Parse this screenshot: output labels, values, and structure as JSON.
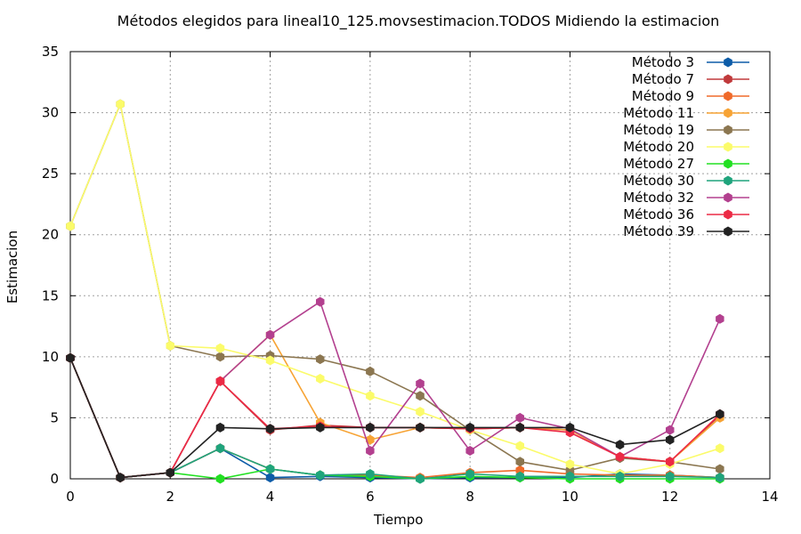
{
  "chart_data": {
    "type": "line",
    "title": "Métodos elegidos para lineal10_125.movsestimacion.TODOS Midiendo la estimacion",
    "xlabel": "Tiempo",
    "ylabel": "Estimacion",
    "xlim": [
      0,
      14
    ],
    "ylim": [
      0,
      35
    ],
    "xticks": [
      "0",
      "2",
      "4",
      "6",
      "8",
      "10",
      "12",
      "14"
    ],
    "yticks": [
      "0",
      "5",
      "10",
      "15",
      "20",
      "25",
      "30",
      "35"
    ],
    "grid": true,
    "legend_position": "top-right",
    "series": [
      {
        "name": "Método 3",
        "color": "#0d5ca8",
        "x": [
          0,
          1,
          2,
          3,
          4,
          5,
          6,
          7,
          8,
          9,
          10,
          11,
          12,
          13
        ],
        "y": [
          9.9,
          0.1,
          0.5,
          2.5,
          0.1,
          0.2,
          0.1,
          0.0,
          0.1,
          0.1,
          0.1,
          0.4,
          0.3,
          0.1
        ]
      },
      {
        "name": "Método 7",
        "color": "#c0393b",
        "x": [
          0,
          1,
          2,
          3,
          4,
          5,
          6,
          7,
          8,
          9,
          10,
          11,
          12,
          13
        ],
        "y": [
          9.9,
          0.1,
          0.5,
          8.0,
          4.0,
          4.4,
          4.2,
          4.2,
          4.1,
          4.2,
          4.0,
          1.8,
          1.4,
          5.2
        ]
      },
      {
        "name": "Método 9",
        "color": "#f06a2a",
        "x": [
          0,
          1,
          2,
          3,
          4,
          5,
          6,
          7,
          8,
          9,
          10,
          11,
          12,
          13
        ],
        "y": [
          9.9,
          0.1,
          0.5,
          2.5,
          0.8,
          0.3,
          0.3,
          0.1,
          0.5,
          0.7,
          0.4,
          0.3,
          0.3,
          0.1
        ]
      },
      {
        "name": "Método 11",
        "color": "#f7a334",
        "x": [
          0,
          1,
          2,
          3,
          4,
          5,
          6,
          7,
          8,
          9,
          10,
          11,
          12,
          13
        ],
        "y": [
          9.9,
          0.1,
          0.5,
          8.0,
          11.8,
          4.6,
          3.2,
          4.2,
          4.1,
          4.2,
          4.0,
          1.8,
          1.4,
          5.0
        ]
      },
      {
        "name": "Método 19",
        "color": "#8b7650",
        "x": [
          0,
          1,
          2,
          3,
          4,
          5,
          6,
          7,
          8,
          9,
          10,
          11,
          12,
          13
        ],
        "y": [
          20.7,
          30.7,
          10.9,
          10.0,
          10.1,
          9.8,
          8.8,
          6.8,
          4.0,
          1.4,
          0.7,
          1.7,
          1.4,
          0.8
        ]
      },
      {
        "name": "Método 20",
        "color": "#fbfb6a",
        "x": [
          0,
          1,
          2,
          3,
          4,
          5,
          6,
          7,
          8,
          9,
          10,
          11,
          12,
          13
        ],
        "y": [
          20.7,
          30.7,
          10.9,
          10.7,
          9.7,
          8.2,
          6.8,
          5.5,
          4.0,
          2.7,
          1.2,
          0.4,
          1.2,
          2.5
        ]
      },
      {
        "name": "Método 27",
        "color": "#22e022",
        "x": [
          0,
          1,
          2,
          3,
          4,
          5,
          6,
          7,
          8,
          9,
          10,
          11,
          12,
          13
        ],
        "y": [
          9.9,
          0.1,
          0.5,
          0.0,
          0.8,
          0.3,
          0.2,
          0.0,
          0.2,
          0.1,
          0.0,
          0.0,
          0.0,
          0.0
        ]
      },
      {
        "name": "Método 30",
        "color": "#1fa47c",
        "x": [
          0,
          1,
          2,
          3,
          4,
          5,
          6,
          7,
          8,
          9,
          10,
          11,
          12,
          13
        ],
        "y": [
          9.9,
          0.1,
          0.5,
          2.5,
          0.8,
          0.3,
          0.4,
          0.0,
          0.4,
          0.2,
          0.2,
          0.2,
          0.2,
          0.1
        ]
      },
      {
        "name": "Método 32",
        "color": "#b3408f",
        "x": [
          0,
          1,
          2,
          3,
          4,
          5,
          6,
          7,
          8,
          9,
          10,
          11,
          12,
          13
        ],
        "y": [
          9.9,
          0.1,
          0.5,
          8.0,
          11.8,
          14.5,
          2.3,
          7.8,
          2.3,
          5.0,
          4.1,
          1.8,
          4.0,
          13.1
        ]
      },
      {
        "name": "Método 36",
        "color": "#ec2a45",
        "x": [
          0,
          1,
          2,
          3,
          4,
          5,
          6,
          7,
          8,
          9,
          10,
          11,
          12,
          13
        ],
        "y": [
          9.9,
          0.1,
          0.5,
          8.0,
          4.1,
          4.3,
          4.2,
          4.2,
          4.1,
          4.2,
          3.8,
          1.8,
          1.4,
          5.3
        ]
      },
      {
        "name": "Método 39",
        "color": "#222222",
        "x": [
          0,
          1,
          2,
          3,
          4,
          5,
          6,
          7,
          8,
          9,
          10,
          11,
          12,
          13
        ],
        "y": [
          9.9,
          0.1,
          0.5,
          4.2,
          4.1,
          4.2,
          4.2,
          4.2,
          4.2,
          4.2,
          4.2,
          2.8,
          3.2,
          5.3
        ]
      }
    ]
  }
}
